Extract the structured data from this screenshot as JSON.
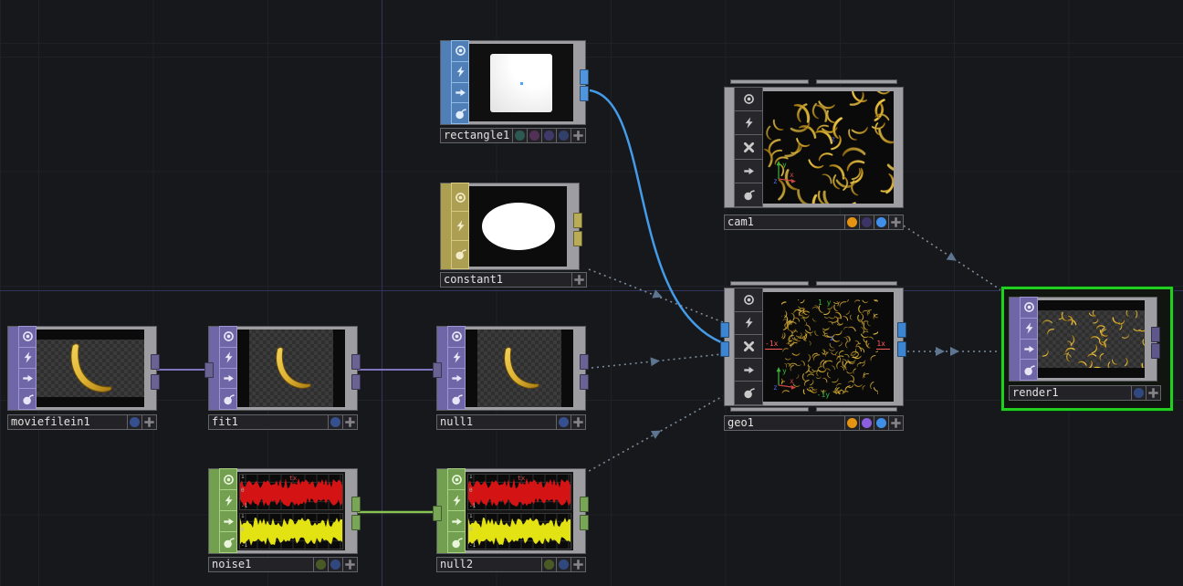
{
  "editor": {
    "description": "node network editor"
  },
  "colors": {
    "background": "#17181c",
    "grid_minor": "#1f2028",
    "grid_axis": "#31345c",
    "family_top": "#6f66a8",
    "family_sop": "#507fb8",
    "family_mat": "#ac9f52",
    "family_chop": "#729f50",
    "family_comp": "#9e9ea2",
    "wire_top": "#7d74bd",
    "wire_sop": "#449be8",
    "wire_chop": "#86c353",
    "reference_wire": "#93a9bb",
    "selection_border": "#23ce23",
    "flag_orange": "#e59312",
    "flag_purple": "#8a5fe0",
    "flag_blue": "#3f8fe8",
    "flag_blue_dim": "#36508f",
    "flag_green_dim": "#4a5a26",
    "flag_teal_dim": "#2c5a52",
    "flag_magenta_dim": "#533055",
    "flag_violet_dim": "#3e3968",
    "flag_navy_dim": "#30406a"
  },
  "nodes": {
    "rectangle1": {
      "label": "rectangle1"
    },
    "constant1": {
      "label": "constant1"
    },
    "cam1": {
      "label": "cam1"
    },
    "moviefilein1": {
      "label": "moviefilein1"
    },
    "fit1": {
      "label": "fit1"
    },
    "null1": {
      "label": "null1"
    },
    "noise1": {
      "label": "noise1"
    },
    "null2": {
      "label": "null2"
    },
    "geo1": {
      "label": "geo1"
    },
    "render1": {
      "label": "render1",
      "selected": true
    }
  },
  "geo_viewer": {
    "top": "1 y",
    "bottom": "-1y",
    "left": "-1x",
    "right": "1x",
    "center": "z",
    "axis_x": "x",
    "axis_y": "y",
    "axis_z": "z"
  },
  "cam_viewer": {
    "center": "z",
    "axis_x": "x",
    "axis_y": "y",
    "axis_z": "z"
  },
  "noise_viewer": {
    "channel": "tx",
    "tick_top": "1",
    "tick_mid": "0",
    "tick_bottom": "-1"
  }
}
